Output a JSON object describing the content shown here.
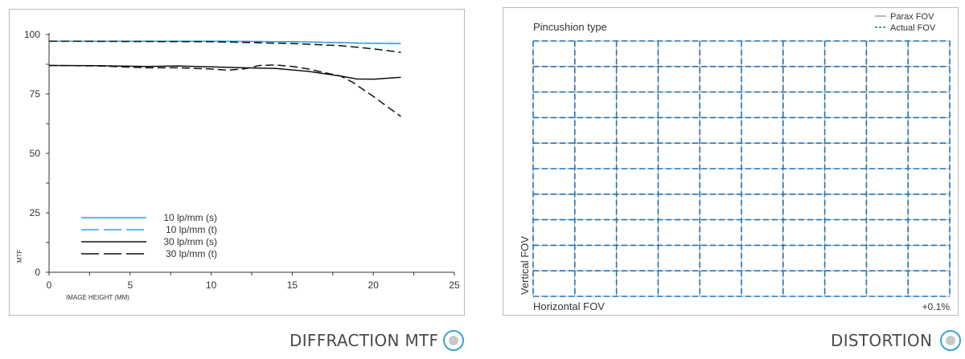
{
  "mtf": {
    "caption": "DIFFRACTION MTF",
    "chart_data": {
      "type": "line",
      "xlabel": "IMAGE HEIGHT (MM)",
      "ylabel": "MTF",
      "xlim": [
        0,
        25
      ],
      "ylim": [
        0,
        100
      ],
      "xticks": [
        "0",
        "5",
        "10",
        "15",
        "20",
        "25"
      ],
      "yticks": [
        "0",
        "25",
        "50",
        "75",
        "100"
      ],
      "legend_position": "bottom-left",
      "series": [
        {
          "name": "10 lp/mm (s)",
          "color": "#2ea0dc",
          "dash": "solid",
          "x": [
            0,
            5,
            10,
            15,
            18,
            20,
            21.7
          ],
          "y": [
            97.2,
            97.2,
            97.2,
            97.0,
            96.6,
            96.3,
            96.2
          ]
        },
        {
          "name": "10 lp/mm (t)",
          "color": "#2ea0dc",
          "dash": "dashed",
          "x": [
            0,
            5,
            10,
            15,
            18,
            20,
            21.7
          ],
          "y": [
            97.2,
            97.2,
            97.2,
            97.0,
            96.6,
            96.3,
            96.2
          ]
        },
        {
          "name": "30 lp/mm (s)",
          "color": "#111111",
          "dash": "solid",
          "x": [
            0,
            3,
            6,
            8,
            10,
            12,
            14,
            16,
            18,
            19,
            20,
            21.7
          ],
          "y": [
            87,
            86.9,
            86.6,
            86.8,
            86.4,
            86,
            85.7,
            84.5,
            82.5,
            81.3,
            81.2,
            82
          ]
        },
        {
          "name": "30 lp/mm (t)",
          "color": "#111111",
          "dash": "dashed",
          "x": [
            0,
            3,
            6,
            8,
            10,
            11,
            12,
            13,
            14,
            15,
            16,
            17,
            18,
            18.7,
            20,
            21.7
          ],
          "y": [
            87,
            86.8,
            86,
            86,
            85.5,
            85,
            85.5,
            87,
            87.2,
            86.6,
            85.5,
            84,
            82.5,
            80,
            74,
            65.5
          ]
        },
        {
          "name": "",
          "color": "#111111",
          "dash": "dashed",
          "x": [
            0,
            5,
            10,
            15,
            18,
            20,
            21.7
          ],
          "y": [
            97.2,
            97.1,
            97.0,
            96.2,
            95.3,
            94.0,
            92.5
          ]
        }
      ]
    }
  },
  "distortion": {
    "caption": "DISTORTION",
    "chart_data": {
      "type": "line",
      "title": "Pincushion type",
      "xlabel": "Horizontal FOV",
      "ylabel": "Vertical FOV",
      "annotation": "+0.1%",
      "grid_columns": 10,
      "grid_rows": 10,
      "legend_position": "top-right",
      "series": [
        {
          "name": "Parax FOV",
          "color": "#9a9a9a",
          "dash": "solid"
        },
        {
          "name": "Actual FOV",
          "color": "#1f73b7",
          "dash": "dashed"
        }
      ]
    }
  }
}
